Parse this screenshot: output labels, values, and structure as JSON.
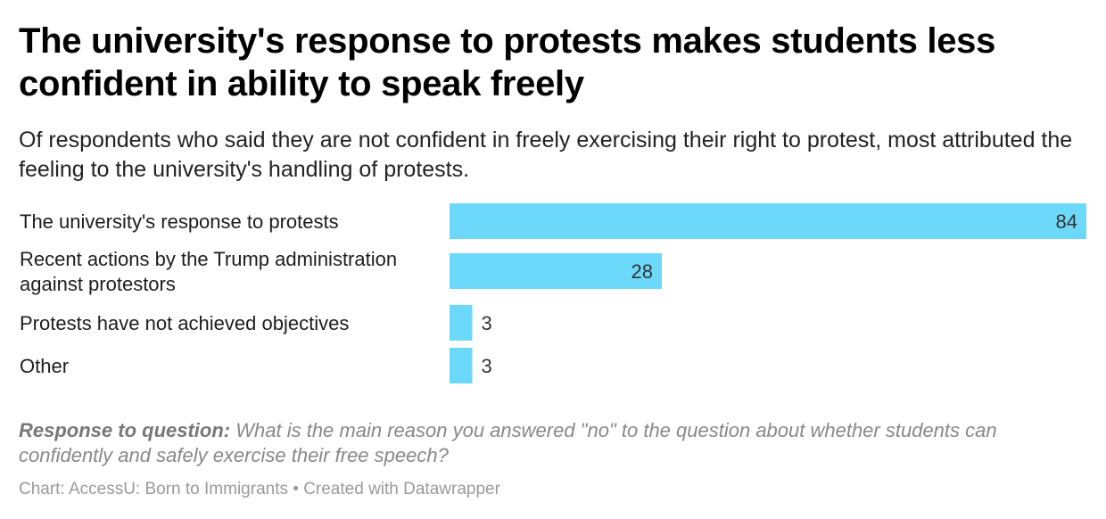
{
  "title": "The university's response to protests makes students less confident in ability to speak freely",
  "subtitle": "Of respondents who said they are not confident in freely exercising their right to protest, most attributed the feeling to the university's handling of protests.",
  "note": {
    "label": "Response to question:",
    "text": "What is the main reason you answered \"no\" to the question about whether students can confidently and safely exercise their free speech?"
  },
  "byline": "Chart: AccessU: Born to Immigrants • Created with Datawrapper",
  "colors": {
    "bar": "#6cd9fb"
  },
  "chart_data": {
    "type": "bar",
    "orientation": "horizontal",
    "categories": [
      [
        "The university's response to protests"
      ],
      [
        "Recent actions by the Trump administration",
        "against protestors"
      ],
      [
        "Protests have not achieved objectives"
      ],
      [
        "Other"
      ]
    ],
    "values": [
      84,
      28,
      3,
      3
    ],
    "xlim": [
      0,
      84
    ],
    "grid": false,
    "legend": "none"
  }
}
